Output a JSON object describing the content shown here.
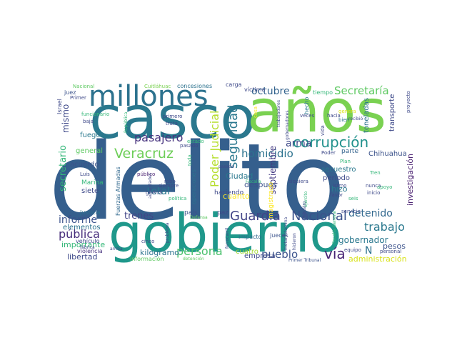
{
  "wordcloud": {
    "words": [
      {
        "text": "delito",
        "color": "#355f8d"
      },
      {
        "text": "casco",
        "color": "#2a788e"
      },
      {
        "text": "años",
        "color": "#7ad151"
      },
      {
        "text": "gobierno",
        "color": "#1f988b"
      },
      {
        "text": "millones",
        "color": "#2c728e"
      },
      {
        "text": "corrupción",
        "color": "#21918c"
      },
      {
        "text": "Guardia",
        "color": "#414487"
      },
      {
        "text": "Nacional",
        "color": "#3b528b"
      },
      {
        "text": "Poder Judicial",
        "color": "#b5de2b"
      },
      {
        "text": "seguridad",
        "color": "#2a788e"
      },
      {
        "text": "Secretaría",
        "color": "#5ec962"
      },
      {
        "text": "Veracruz",
        "color": "#6ece58"
      },
      {
        "text": "pasajero",
        "color": "#46327e"
      },
      {
        "text": "homicidio",
        "color": "#2c728e"
      },
      {
        "text": "octubre",
        "color": "#33638d"
      },
      {
        "text": "arma",
        "color": "#3e4989"
      },
      {
        "text": "persona",
        "color": "#4ac16d"
      },
      {
        "text": "vía",
        "color": "#482475"
      },
      {
        "text": "pueblo",
        "color": "#3b528b"
      },
      {
        "text": "trabajo",
        "color": "#2a788e"
      },
      {
        "text": "detenido",
        "color": "#31688e"
      },
      {
        "text": "trenes",
        "color": "#414487"
      },
      {
        "text": "total",
        "color": "#2a788e"
      },
      {
        "text": "informe",
        "color": "#3b528b"
      },
      {
        "text": "pública",
        "color": "#472d7b"
      },
      {
        "text": "secretario",
        "color": "#35b779"
      },
      {
        "text": "mismo",
        "color": "#3e4989"
      },
      {
        "text": "gobernador",
        "color": "#2a788e"
      },
      {
        "text": "septiembre",
        "color": "#443a83"
      },
      {
        "text": "investigación",
        "color": "#481f70"
      },
      {
        "text": "N",
        "color": "#2c728e"
      },
      {
        "text": "pesos",
        "color": "#3b528b"
      },
      {
        "text": "kilogramo",
        "color": "#2c728e"
      },
      {
        "text": "cuanto",
        "color": "#fde725"
      },
      {
        "text": "Ciudad",
        "color": "#2a788e"
      },
      {
        "text": "después",
        "color": "#3b528b"
      },
      {
        "text": "hizo",
        "color": "#2a788e"
      },
      {
        "text": "libertad",
        "color": "#3e4989"
      },
      {
        "text": "administración",
        "color": "#d8e219"
      },
      {
        "text": "empresa",
        "color": "#3e4989"
      },
      {
        "text": "cuatro",
        "color": "#a5db36"
      },
      {
        "text": "periodo",
        "color": "#3e4989"
      },
      {
        "text": "secuestro",
        "color": "#2a788e"
      },
      {
        "text": "parte",
        "color": "#33638d"
      },
      {
        "text": "Chihuahua",
        "color": "#3b528b"
      },
      {
        "text": "transporte",
        "color": "#3e4989"
      },
      {
        "text": "toneladas",
        "color": "#2c728e"
      },
      {
        "text": "importante",
        "color": "#35b779"
      },
      {
        "text": "elementos",
        "color": "#2c728e"
      },
      {
        "text": "acuerdo",
        "color": "#3b528b"
      },
      {
        "text": "fuego",
        "color": "#2a788e"
      },
      {
        "text": "general",
        "color": "#5ec962"
      },
      {
        "text": "siete",
        "color": "#3e4989"
      },
      {
        "text": "Marina",
        "color": "#35b779"
      },
      {
        "text": "Fuerzas Armadas",
        "color": "#31688e"
      },
      {
        "text": "Justicia",
        "color": "#2c728e"
      },
      {
        "text": "vehículo",
        "color": "#3e4989"
      },
      {
        "text": "violencia",
        "color": "#46327e"
      },
      {
        "text": "información",
        "color": "#5ec962"
      },
      {
        "text": "magistrado",
        "color": "#fde725"
      },
      {
        "text": "haciendo",
        "color": "#3e4989"
      },
      {
        "text": "país",
        "color": "#3b528b"
      },
      {
        "text": "paz",
        "color": "#3e4989"
      },
      {
        "text": "impacto",
        "color": "#31688e"
      },
      {
        "text": "jueces",
        "color": "#3b528b"
      },
      {
        "text": "concesiones",
        "color": "#2c728e"
      },
      {
        "text": "carga",
        "color": "#3e4989"
      },
      {
        "text": "víctima",
        "color": "#3e4989"
      },
      {
        "text": "cosa",
        "color": "#fde725"
      },
      {
        "text": "hecho",
        "color": "#2a788e"
      },
      {
        "text": "tiempo",
        "color": "#35b779"
      },
      {
        "text": "genera",
        "color": "#dce319"
      },
      {
        "text": "bien",
        "color": "#2c728e"
      },
      {
        "text": "proyecto",
        "color": "#3e4989"
      },
      {
        "text": "Nacional",
        "color": "#5ec962"
      },
      {
        "text": "Cuitláhuac",
        "color": "#7ad151"
      },
      {
        "text": "juez",
        "color": "#3b528b"
      },
      {
        "text": "Primer",
        "color": "#3e4989"
      },
      {
        "text": "Israel",
        "color": "#3e4989"
      },
      {
        "text": "funcionario",
        "color": "#35b779"
      },
      {
        "text": "baja",
        "color": "#3e4989"
      },
      {
        "text": "primero",
        "color": "#3e4989"
      },
      {
        "text": "trata",
        "color": "#3e4989"
      },
      {
        "text": "República",
        "color": "#35b779"
      },
      {
        "text": "Luis",
        "color": "#3e4989"
      },
      {
        "text": "público",
        "color": "#481f70"
      },
      {
        "text": "robo",
        "color": "#3e4989"
      },
      {
        "text": "siempre",
        "color": "#3e4989"
      },
      {
        "text": "guerra",
        "color": "#3e4989"
      },
      {
        "text": "política",
        "color": "#35b779"
      },
      {
        "text": "Defensa",
        "color": "#5ec962"
      },
      {
        "text": "pasado",
        "color": "#3e4989"
      },
      {
        "text": "servicio",
        "color": "#3e4989"
      },
      {
        "text": "equipo",
        "color": "#3e4989"
      },
      {
        "text": "personal",
        "color": "#3e4989"
      },
      {
        "text": "Primer Tribunal",
        "color": "#3b528b"
      },
      {
        "text": "Fiscalía General",
        "color": "#35b779"
      },
      {
        "text": "seis",
        "color": "#35b779"
      },
      {
        "text": "nunca",
        "color": "#3e4989"
      },
      {
        "text": "inicio",
        "color": "#3e4989"
      },
      {
        "text": "Tren",
        "color": "#35b779"
      },
      {
        "text": "apoyo",
        "color": "#35b779"
      },
      {
        "text": "istmo",
        "color": "#3e4989"
      },
      {
        "text": "siquiera",
        "color": "#3e4989"
      },
      {
        "text": "Plan",
        "color": "#35b779"
      },
      {
        "text": "Poder",
        "color": "#3e4989"
      },
      {
        "text": "veces",
        "color": "#3e4989"
      },
      {
        "text": "hacia",
        "color": "#3e4989"
      },
      {
        "text": "favor",
        "color": "#3e4989"
      },
      {
        "text": "recibió",
        "color": "#3e4989"
      },
      {
        "text": "cinco",
        "color": "#3e4989"
      },
      {
        "text": "problema",
        "color": "#3e4989"
      },
      {
        "text": "arriba",
        "color": "#3e4989"
      },
      {
        "text": "fábrica",
        "color": "#3e4989"
      },
      {
        "text": "ferrocarril",
        "color": "#3e4989"
      },
      {
        "text": "metanfetamina",
        "color": "#3e4989"
      },
      {
        "text": "hicieron",
        "color": "#3e4989"
      },
      {
        "text": "ejército",
        "color": "#35b779"
      },
      {
        "text": "vida",
        "color": "#3e4989"
      },
      {
        "text": "gobernadores",
        "color": "#3e4989"
      },
      {
        "text": "trabajadores",
        "color": "#3e4989"
      },
      {
        "text": "Fiscalía",
        "color": "#35b779"
      },
      {
        "text": "detención",
        "color": "#5ec962"
      },
      {
        "text": "autoridades",
        "color": "#3e4989"
      },
      {
        "text": "estado",
        "color": "#35b779"
      },
      {
        "text": "toda",
        "color": "#35b779"
      },
      {
        "text": "ministro",
        "color": "#3e4989"
      },
      {
        "text": "operaciones",
        "color": "#2c728e"
      },
      {
        "text": "pasado",
        "color": "#3e4989"
      }
    ]
  }
}
